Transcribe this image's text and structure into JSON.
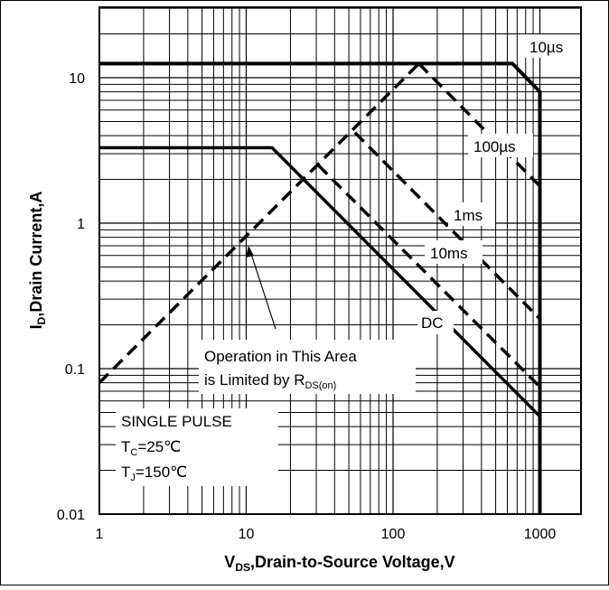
{
  "chart_data": {
    "type": "line",
    "x_scale": "log",
    "y_scale": "log",
    "xlim": [
      1,
      1000
    ],
    "ylim": [
      0.01,
      30
    ],
    "xticks": [
      "1",
      "10",
      "100",
      "1000"
    ],
    "yticks": [
      "0.01",
      "0.1",
      "1",
      "10"
    ],
    "xlabel": {
      "prefix": "V",
      "sub": "DS",
      "rest": ",Drain-to-Source Voltage,V"
    },
    "ylabel": {
      "prefix": "I",
      "sub": "D",
      "rest": ",Drain Current,A"
    },
    "grid": true,
    "series": [
      {
        "name": "10µs",
        "style": "solid",
        "x": [
          1,
          650,
          1000,
          1000
        ],
        "y": [
          12.5,
          12.5,
          8,
          0.01
        ]
      },
      {
        "name": "100µs",
        "style": "dashed",
        "x": [
          150,
          1000
        ],
        "y": [
          12.5,
          1.8
        ]
      },
      {
        "name": "1ms",
        "style": "dashed",
        "x": [
          55,
          1000
        ],
        "y": [
          4.2,
          0.22
        ]
      },
      {
        "name": "10ms",
        "style": "dashed",
        "x": [
          31,
          1000
        ],
        "y": [
          2.5,
          0.075
        ]
      },
      {
        "name": "DC",
        "style": "solid",
        "x": [
          1,
          15,
          1000
        ],
        "y": [
          3.3,
          3.3,
          0.047
        ]
      },
      {
        "name": "RDS(on) limit",
        "style": "dashed",
        "x": [
          1,
          150
        ],
        "y": [
          0.08,
          12.5
        ]
      }
    ],
    "annotations": {
      "t10us": "10µs",
      "t100us": "100µs",
      "t1ms": "1ms",
      "t10ms": "10ms",
      "tdc": "DC",
      "rds_line1": "Operation in This Area",
      "rds_line2_prefix": "is Limited by R",
      "rds_line2_sub": "DS(on)",
      "single_pulse": "SINGLE PULSE",
      "tc_prefix": "T",
      "tc_sub": "C",
      "tc_rest": "=25℃",
      "tj_prefix": "T",
      "tj_sub": "J",
      "tj_rest": "=150℃"
    }
  }
}
